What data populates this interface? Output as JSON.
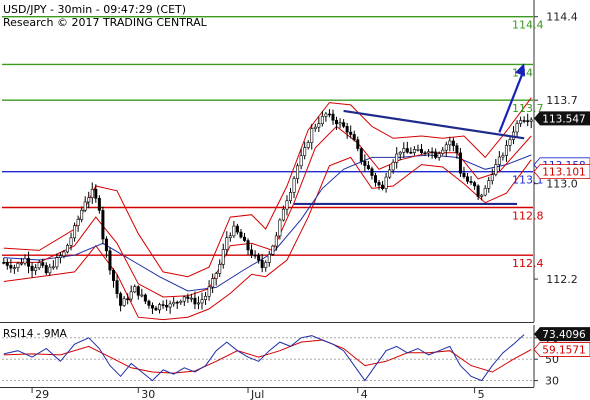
{
  "header": {
    "title": "USD/JPY - 30min - 09:47:29 (CET)",
    "subtitle": "Research © 2017 TRADING CENTRAL"
  },
  "colors": {
    "candle": "#000000",
    "bollinger": "#d40000",
    "ma_blue": "#1f2fa8",
    "ma_red": "#d40000",
    "resistance": "#3a9a1e",
    "pivot": "#1d2bd1",
    "support": "#d40000",
    "trendline": "#1f2a8c",
    "arrow": "#1622b8",
    "price_tag_bg": "#111111",
    "rsi_line": "#1f2fa8",
    "rsi_ma": "#d40000",
    "axis_text": "#222222"
  },
  "chart_data": [
    {
      "type": "candlestick",
      "title": "USD/JPY - 30min - 09:47:29 (CET)",
      "ylim": [
        111.84,
        114.54
      ],
      "y_ticks": [
        112.2,
        113.0,
        113.7,
        114.4
      ],
      "x_ticks": [
        "29",
        "30",
        "Jul",
        "4",
        "5"
      ],
      "x_tick_positions": [
        8,
        38,
        69,
        100,
        133
      ],
      "n_bars": 150,
      "last_price": 113.547,
      "level_lines": [
        {
          "kind": "resistance",
          "value": 114.4,
          "label": "114.4"
        },
        {
          "kind": "resistance",
          "value": 114.0,
          "label": "114"
        },
        {
          "kind": "resistance",
          "value": 113.7,
          "label": "113.7"
        },
        {
          "kind": "pivot",
          "value": 113.1,
          "label": "113.1"
        },
        {
          "kind": "support",
          "value": 112.8,
          "label": "112.8"
        },
        {
          "kind": "support",
          "value": 112.4,
          "label": "112.4"
        }
      ],
      "price_tags": [
        {
          "value": 113.547,
          "label": "113.547",
          "style": "dark"
        },
        {
          "value": 113.158,
          "label": "113.158",
          "style": "blue"
        },
        {
          "value": 113.101,
          "label": "113.101",
          "style": "red"
        }
      ],
      "trendlines": [
        {
          "x": [
            96,
            147
          ],
          "y": [
            113.61,
            113.38
          ]
        },
        {
          "x": [
            82,
            145
          ],
          "y": [
            112.83,
            112.83
          ]
        }
      ],
      "target_arrow": {
        "x": [
          140,
          147
        ],
        "y": [
          113.43,
          114.01
        ]
      },
      "close_path": [
        [
          0,
          112.34
        ],
        [
          3,
          112.3
        ],
        [
          6,
          112.37
        ],
        [
          8,
          112.29
        ],
        [
          10,
          112.33
        ],
        [
          12,
          112.25
        ],
        [
          15,
          112.36
        ],
        [
          17,
          112.42
        ],
        [
          19,
          112.55
        ],
        [
          21,
          112.7
        ],
        [
          23,
          112.86
        ],
        [
          25,
          112.93
        ],
        [
          27,
          112.8
        ],
        [
          28,
          112.55
        ],
        [
          30,
          112.3
        ],
        [
          32,
          112.08
        ],
        [
          33,
          111.98
        ],
        [
          35,
          112.05
        ],
        [
          37,
          112.12
        ],
        [
          39,
          112.05
        ],
        [
          41,
          111.98
        ],
        [
          43,
          111.96
        ],
        [
          45,
          112.0
        ],
        [
          47,
          111.98
        ],
        [
          49,
          112.01
        ],
        [
          51,
          112.06
        ],
        [
          53,
          112.02
        ],
        [
          55,
          112.0
        ],
        [
          57,
          112.06
        ],
        [
          59,
          112.18
        ],
        [
          61,
          112.32
        ],
        [
          63,
          112.55
        ],
        [
          65,
          112.62
        ],
        [
          67,
          112.55
        ],
        [
          69,
          112.45
        ],
        [
          71,
          112.38
        ],
        [
          73,
          112.3
        ],
        [
          75,
          112.42
        ],
        [
          77,
          112.55
        ],
        [
          79,
          112.8
        ],
        [
          81,
          112.95
        ],
        [
          83,
          113.15
        ],
        [
          85,
          113.28
        ],
        [
          87,
          113.45
        ],
        [
          89,
          113.52
        ],
        [
          91,
          113.58
        ],
        [
          93,
          113.54
        ],
        [
          95,
          113.5
        ],
        [
          97,
          113.45
        ],
        [
          99,
          113.35
        ],
        [
          101,
          113.2
        ],
        [
          103,
          113.12
        ],
        [
          105,
          113.02
        ],
        [
          107,
          112.95
        ],
        [
          108,
          113.08
        ],
        [
          110,
          113.2
        ],
        [
          112,
          113.28
        ],
        [
          114,
          113.26
        ],
        [
          116,
          113.28
        ],
        [
          118,
          113.25
        ],
        [
          120,
          113.29
        ],
        [
          122,
          113.24
        ],
        [
          124,
          113.3
        ],
        [
          126,
          113.36
        ],
        [
          128,
          113.26
        ],
        [
          129,
          113.1
        ],
        [
          131,
          113.02
        ],
        [
          133,
          112.97
        ],
        [
          134,
          112.88
        ],
        [
          136,
          112.95
        ],
        [
          138,
          113.1
        ],
        [
          140,
          113.2
        ],
        [
          142,
          113.3
        ],
        [
          144,
          113.45
        ],
        [
          146,
          113.55
        ],
        [
          149,
          113.547
        ]
      ],
      "bollinger_upper": [
        [
          0,
          112.46
        ],
        [
          10,
          112.44
        ],
        [
          20,
          112.62
        ],
        [
          26,
          112.98
        ],
        [
          32,
          112.94
        ],
        [
          38,
          112.58
        ],
        [
          45,
          112.26
        ],
        [
          52,
          112.22
        ],
        [
          58,
          112.3
        ],
        [
          64,
          112.72
        ],
        [
          70,
          112.74
        ],
        [
          74,
          112.62
        ],
        [
          80,
          112.98
        ],
        [
          86,
          113.45
        ],
        [
          92,
          113.68
        ],
        [
          98,
          113.66
        ],
        [
          104,
          113.48
        ],
        [
          110,
          113.38
        ],
        [
          118,
          113.4
        ],
        [
          124,
          113.38
        ],
        [
          130,
          113.4
        ],
        [
          136,
          113.22
        ],
        [
          142,
          113.44
        ],
        [
          149,
          113.72
        ]
      ],
      "bollinger_lower": [
        [
          0,
          112.18
        ],
        [
          10,
          112.22
        ],
        [
          20,
          112.26
        ],
        [
          26,
          112.48
        ],
        [
          32,
          112.24
        ],
        [
          38,
          111.88
        ],
        [
          45,
          111.86
        ],
        [
          52,
          111.88
        ],
        [
          58,
          111.95
        ],
        [
          64,
          112.08
        ],
        [
          70,
          112.24
        ],
        [
          74,
          112.22
        ],
        [
          80,
          112.36
        ],
        [
          86,
          112.72
        ],
        [
          92,
          113.15
        ],
        [
          98,
          113.22
        ],
        [
          104,
          112.96
        ],
        [
          110,
          112.98
        ],
        [
          118,
          113.16
        ],
        [
          124,
          113.14
        ],
        [
          130,
          113.0
        ],
        [
          136,
          112.84
        ],
        [
          142,
          112.92
        ],
        [
          149,
          113.2
        ]
      ],
      "ma_blue": [
        [
          0,
          112.38
        ],
        [
          10,
          112.36
        ],
        [
          20,
          112.4
        ],
        [
          28,
          112.5
        ],
        [
          36,
          112.36
        ],
        [
          44,
          112.22
        ],
        [
          52,
          112.1
        ],
        [
          60,
          112.13
        ],
        [
          68,
          112.28
        ],
        [
          76,
          112.42
        ],
        [
          84,
          112.7
        ],
        [
          90,
          112.96
        ],
        [
          96,
          113.12
        ],
        [
          104,
          113.22
        ],
        [
          112,
          113.22
        ],
        [
          120,
          113.24
        ],
        [
          128,
          113.22
        ],
        [
          136,
          113.12
        ],
        [
          142,
          113.16
        ],
        [
          149,
          113.24
        ]
      ],
      "ma_red": [
        [
          0,
          112.34
        ],
        [
          10,
          112.34
        ],
        [
          20,
          112.48
        ],
        [
          26,
          112.72
        ],
        [
          32,
          112.5
        ],
        [
          38,
          112.16
        ],
        [
          45,
          112.05
        ],
        [
          52,
          112.06
        ],
        [
          58,
          112.12
        ],
        [
          64,
          112.48
        ],
        [
          70,
          112.5
        ],
        [
          76,
          112.44
        ],
        [
          82,
          112.84
        ],
        [
          88,
          113.3
        ],
        [
          94,
          113.48
        ],
        [
          100,
          113.34
        ],
        [
          106,
          113.12
        ],
        [
          112,
          113.2
        ],
        [
          120,
          113.26
        ],
        [
          128,
          113.26
        ],
        [
          134,
          113.04
        ],
        [
          140,
          113.1
        ],
        [
          149,
          113.4
        ]
      ]
    },
    {
      "type": "line",
      "title": "RSI14 - 9MA",
      "ylim": [
        24,
        82
      ],
      "y_ticks": [
        30,
        50,
        70
      ],
      "reference_lines": [
        30,
        50,
        70
      ],
      "last_rsi": 73.4096,
      "last_ma": 59.1571,
      "series": [
        {
          "name": "RSI14",
          "values": [
            [
              0,
              55
            ],
            [
              4,
              58
            ],
            [
              8,
              52
            ],
            [
              12,
              60
            ],
            [
              16,
              48
            ],
            [
              20,
              64
            ],
            [
              24,
              70
            ],
            [
              27,
              60
            ],
            [
              30,
              44
            ],
            [
              33,
              34
            ],
            [
              36,
              46
            ],
            [
              39,
              38
            ],
            [
              42,
              30
            ],
            [
              45,
              40
            ],
            [
              48,
              36
            ],
            [
              51,
              42
            ],
            [
              54,
              38
            ],
            [
              57,
              44
            ],
            [
              60,
              58
            ],
            [
              63,
              66
            ],
            [
              66,
              58
            ],
            [
              69,
              52
            ],
            [
              72,
              48
            ],
            [
              75,
              58
            ],
            [
              78,
              66
            ],
            [
              81,
              62
            ],
            [
              84,
              70
            ],
            [
              87,
              72
            ],
            [
              90,
              68
            ],
            [
              93,
              64
            ],
            [
              96,
              58
            ],
            [
              99,
              44
            ],
            [
              102,
              30
            ],
            [
              105,
              44
            ],
            [
              108,
              58
            ],
            [
              111,
              62
            ],
            [
              114,
              56
            ],
            [
              117,
              60
            ],
            [
              120,
              54
            ],
            [
              123,
              58
            ],
            [
              126,
              62
            ],
            [
              129,
              44
            ],
            [
              132,
              34
            ],
            [
              135,
              30
            ],
            [
              138,
              44
            ],
            [
              141,
              56
            ],
            [
              144,
              64
            ],
            [
              147,
              73
            ]
          ]
        },
        {
          "name": "9MA",
          "values": [
            [
              0,
              54
            ],
            [
              8,
              55
            ],
            [
              16,
              54
            ],
            [
              24,
              62
            ],
            [
              30,
              52
            ],
            [
              36,
              42
            ],
            [
              42,
              38
            ],
            [
              48,
              37
            ],
            [
              54,
              39
            ],
            [
              60,
              48
            ],
            [
              66,
              58
            ],
            [
              72,
              52
            ],
            [
              78,
              58
            ],
            [
              84,
              66
            ],
            [
              90,
              68
            ],
            [
              96,
              60
            ],
            [
              102,
              44
            ],
            [
              108,
              48
            ],
            [
              114,
              56
            ],
            [
              120,
              56
            ],
            [
              126,
              58
            ],
            [
              132,
              44
            ],
            [
              138,
              38
            ],
            [
              144,
              50
            ],
            [
              149,
              59
            ]
          ]
        }
      ]
    }
  ]
}
